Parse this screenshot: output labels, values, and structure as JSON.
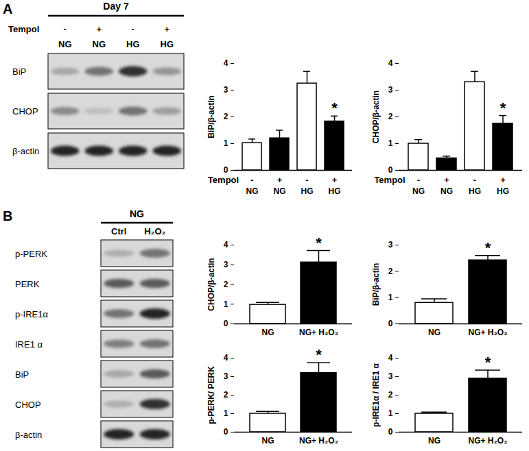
{
  "chart_data": [
    {
      "type": "bar",
      "categories": [
        "NG",
        "NG",
        "HG",
        "HG"
      ],
      "sub_categories": {
        "label": "Tempol",
        "values": [
          "-",
          "+",
          "-",
          "+"
        ]
      },
      "values": [
        1.02,
        1.2,
        3.25,
        1.83
      ],
      "errors": [
        0.15,
        0.3,
        0.45,
        0.2
      ],
      "colors": [
        "#ffffff",
        "#000000",
        "#ffffff",
        "#000000"
      ],
      "y_label": "BiP/β-actin",
      "ylim": [
        0,
        4
      ],
      "yticks": [
        0,
        1,
        2,
        3,
        4
      ],
      "annotations": [
        {
          "index": 3,
          "text": "*"
        }
      ]
    },
    {
      "type": "bar",
      "categories": [
        "NG",
        "NG",
        "HG",
        "HG"
      ],
      "sub_categories": {
        "label": "Tempol",
        "values": [
          "-",
          "+",
          "-",
          "+"
        ]
      },
      "values": [
        1.0,
        0.45,
        3.3,
        1.75
      ],
      "errors": [
        0.15,
        0.08,
        0.4,
        0.3
      ],
      "colors": [
        "#ffffff",
        "#000000",
        "#ffffff",
        "#000000"
      ],
      "y_label": "CHOP/β-actin",
      "ylim": [
        0,
        4
      ],
      "yticks": [
        0,
        1,
        2,
        3,
        4
      ],
      "annotations": [
        {
          "index": 3,
          "text": "*"
        }
      ]
    },
    {
      "type": "bar",
      "categories": [
        "NG",
        "NG+ H₂O₂"
      ],
      "values": [
        0.97,
        3.12
      ],
      "errors": [
        0.12,
        0.6
      ],
      "colors": [
        "#ffffff",
        "#000000"
      ],
      "y_label": "CHOP/β-actin",
      "ylim": [
        0,
        4
      ],
      "yticks": [
        0,
        1,
        2,
        3,
        4
      ],
      "annotations": [
        {
          "index": 1,
          "text": "*"
        }
      ]
    },
    {
      "type": "bar",
      "categories": [
        "NG",
        "NG+ H₂O₂"
      ],
      "values": [
        0.8,
        2.42
      ],
      "errors": [
        0.15,
        0.18
      ],
      "colors": [
        "#ffffff",
        "#000000"
      ],
      "y_label": "BiP/β-actin",
      "ylim": [
        0,
        3
      ],
      "yticks": [
        0,
        1,
        2,
        3
      ],
      "annotations": [
        {
          "index": 1,
          "text": "*"
        }
      ]
    },
    {
      "type": "bar",
      "categories": [
        "NG",
        "NG+ H₂O₂"
      ],
      "values": [
        1.0,
        3.2
      ],
      "errors": [
        0.12,
        0.55
      ],
      "colors": [
        "#ffffff",
        "#000000"
      ],
      "y_label": "p-PERK/ PERK",
      "ylim": [
        0,
        4
      ],
      "yticks": [
        0,
        1,
        2,
        3,
        4
      ],
      "annotations": [
        {
          "index": 1,
          "text": "*"
        }
      ]
    },
    {
      "type": "bar",
      "categories": [
        "NG",
        "NG+ H₂O₂"
      ],
      "values": [
        1.0,
        2.9
      ],
      "errors": [
        0.08,
        0.45
      ],
      "colors": [
        "#ffffff",
        "#000000"
      ],
      "y_label": "p-IRE1α / IRE1 α",
      "ylim": [
        0,
        4
      ],
      "yticks": [
        0,
        1,
        2,
        3,
        4
      ],
      "annotations": [
        {
          "index": 1,
          "text": "*"
        }
      ]
    }
  ],
  "blots": [
    {
      "letter": "A",
      "header": "Day 7",
      "row_label": "Tempol",
      "lane_labels": [
        "-",
        "+",
        "-",
        "+"
      ],
      "lane_groups": [
        "NG",
        "NG",
        "HG",
        "HG"
      ],
      "rows": [
        {
          "label": "BiP",
          "bands": [
            0.35,
            0.6,
            0.85,
            0.45
          ]
        },
        {
          "label": "CHOP",
          "bands": [
            0.5,
            0.2,
            0.6,
            0.4
          ]
        },
        {
          "label": "β-actin",
          "bands": [
            0.9,
            0.9,
            0.9,
            0.9
          ]
        }
      ]
    },
    {
      "letter": "B",
      "header": "NG",
      "lane_labels": [
        "Ctrl",
        "H₂O₂"
      ],
      "rows": [
        {
          "label": "p-PERK",
          "bands": [
            0.3,
            0.6
          ]
        },
        {
          "label": "PERK",
          "bands": [
            0.7,
            0.7
          ]
        },
        {
          "label": "p-IRE1α",
          "bands": [
            0.6,
            0.9
          ]
        },
        {
          "label": "IRE1 α",
          "bands": [
            0.55,
            0.6
          ]
        },
        {
          "label": "BiP",
          "bands": [
            0.35,
            0.7
          ]
        },
        {
          "label": "CHOP",
          "bands": [
            0.3,
            0.85
          ]
        },
        {
          "label": "β-actin",
          "bands": [
            0.9,
            0.9
          ]
        }
      ]
    }
  ]
}
